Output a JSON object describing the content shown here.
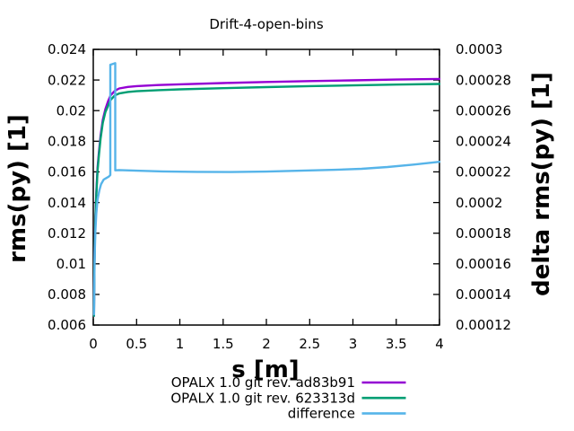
{
  "chart_data": {
    "type": "line",
    "title": "Drift-4-open-bins",
    "xlabel": "s [m]",
    "ylabel": "rms(py) [1]",
    "y2label": "delta rms(py) [1]",
    "background_color": "#ffffff",
    "axis_color": "#000000",
    "grid": false,
    "legend_position": "below-plot-right",
    "x_axis": {
      "min": 0,
      "max": 4,
      "tick_values": [
        0,
        0.5,
        1,
        1.5,
        2,
        2.5,
        3,
        3.5,
        4
      ],
      "tick_labels": [
        "0",
        "0.5",
        "1",
        "1.5",
        "2",
        "2.5",
        "3",
        "3.5",
        "4"
      ]
    },
    "y_axis": {
      "min": 0.006,
      "max": 0.024,
      "tick_values": [
        0.006,
        0.008,
        0.01,
        0.012,
        0.014,
        0.016,
        0.018,
        0.02,
        0.022,
        0.024
      ],
      "tick_labels": [
        "0.006",
        "0.008",
        "0.01",
        "0.012",
        "0.014",
        "0.016",
        "0.018",
        "0.02",
        "0.022",
        "0.024"
      ]
    },
    "y2_axis": {
      "min": 0.00012,
      "max": 0.0003,
      "tick_values": [
        0.00012,
        0.00014,
        0.00016,
        0.00018,
        0.0002,
        0.00022,
        0.00024,
        0.00026,
        0.00028,
        0.0003
      ],
      "tick_labels": [
        "0.00012",
        "0.00014",
        "0.00016",
        "0.00018",
        "0.0002",
        "0.00022",
        "0.00024",
        "0.00026",
        "0.00028",
        "0.0003"
      ]
    },
    "series": [
      {
        "name": "OPALX 1.0 git rev. ad83b91",
        "color": "#9400d3",
        "axis": "y",
        "x": [
          0.008,
          0.012,
          0.018,
          0.025,
          0.035,
          0.05,
          0.065,
          0.085,
          0.11,
          0.14,
          0.17,
          0.2,
          0.25,
          0.3,
          0.4,
          0.5,
          0.75,
          1.0,
          1.5,
          2.0,
          2.5,
          3.0,
          3.5,
          4.0
        ],
        "values": [
          0.0066,
          0.0095,
          0.0115,
          0.0131,
          0.0147,
          0.0163,
          0.0173,
          0.0184,
          0.0194,
          0.0201,
          0.0206,
          0.021,
          0.0213,
          0.02145,
          0.02155,
          0.0216,
          0.02167,
          0.02172,
          0.0218,
          0.02187,
          0.02193,
          0.02198,
          0.02203,
          0.02207
        ]
      },
      {
        "name": "OPALX 1.0 git rev. 623313d",
        "color": "#009e73",
        "axis": "y",
        "x": [
          0.008,
          0.012,
          0.018,
          0.025,
          0.035,
          0.05,
          0.065,
          0.085,
          0.11,
          0.14,
          0.17,
          0.2,
          0.25,
          0.3,
          0.4,
          0.5,
          0.75,
          1.0,
          1.5,
          2.0,
          2.5,
          3.0,
          3.5,
          4.0
        ],
        "values": [
          0.0066,
          0.0094,
          0.0113,
          0.0129,
          0.0145,
          0.0161,
          0.0171,
          0.0182,
          0.0192,
          0.0199,
          0.0203,
          0.0207,
          0.021,
          0.02112,
          0.02122,
          0.02127,
          0.02134,
          0.02139,
          0.02147,
          0.02154,
          0.0216,
          0.02165,
          0.0217,
          0.02174
        ]
      },
      {
        "name": "difference",
        "color": "#56b4e9",
        "axis": "y2",
        "x": [
          0.008,
          0.012,
          0.018,
          0.025,
          0.035,
          0.05,
          0.07,
          0.09,
          0.12,
          0.15,
          0.18,
          0.197,
          0.197,
          0.254,
          0.254,
          0.3,
          0.5,
          0.8,
          1.2,
          1.6,
          2.0,
          2.4,
          2.8,
          3.1,
          3.4,
          3.7,
          4.0
        ],
        "values": [
          0.000127,
          0.00015,
          0.000168,
          0.000182,
          0.000193,
          0.000202,
          0.000208,
          0.000212,
          0.000215,
          0.000216,
          0.000217,
          0.000218,
          0.00029,
          0.000291,
          0.000221,
          0.0002212,
          0.0002208,
          0.0002203,
          0.00022,
          0.0002199,
          0.0002202,
          0.0002208,
          0.0002214,
          0.000222,
          0.0002232,
          0.0002248,
          0.0002266
        ]
      }
    ]
  }
}
